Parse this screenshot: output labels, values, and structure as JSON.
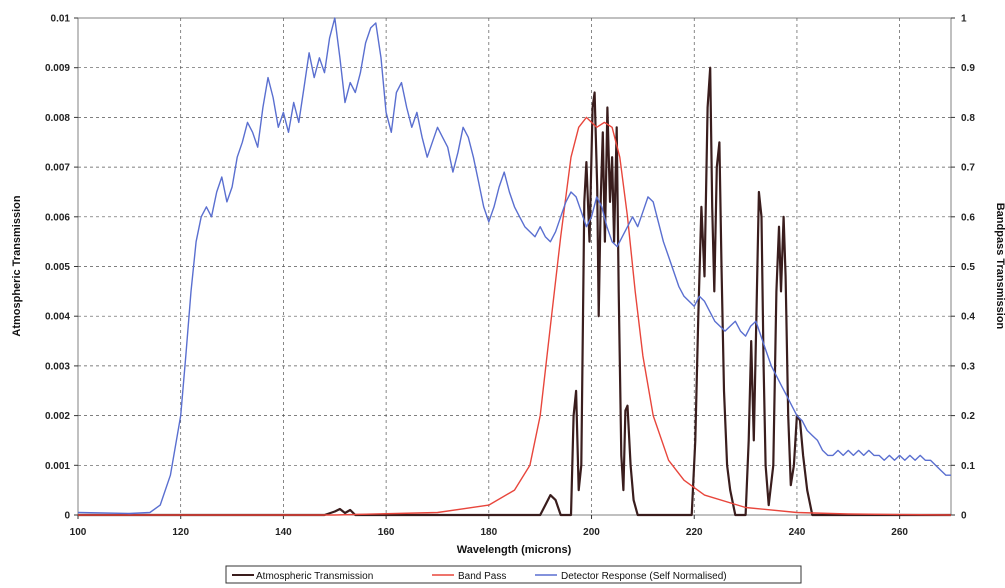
{
  "chart_data": {
    "type": "line",
    "title": "",
    "xlabel": "Wavelength (microns)",
    "ylabel_left": "Atmospheric Transmission",
    "ylabel_right": "Bandpass Transmission",
    "xlim": [
      100,
      270
    ],
    "ylim_left": [
      0,
      0.01
    ],
    "ylim_right": [
      0,
      1
    ],
    "x_ticks": [
      "100",
      "120",
      "140",
      "160",
      "180",
      "200",
      "220",
      "240",
      "260"
    ],
    "y_left_ticks": [
      "0",
      "0.001",
      "0.002",
      "0.003",
      "0.004",
      "0.005",
      "0.006",
      "0.007",
      "0.008",
      "0.009",
      "0.01"
    ],
    "y_right_ticks": [
      "0",
      "0.1",
      "0.2",
      "0.3",
      "0.4",
      "0.5",
      "0.6",
      "0.7",
      "0.8",
      "0.9",
      "1"
    ],
    "grid": true,
    "legend_position": "bottom",
    "series": [
      {
        "name": "Atmospheric Transmission",
        "color": "#3a1d1d",
        "axis": "left",
        "points": [
          [
            100,
            0
          ],
          [
            148,
            0
          ],
          [
            150,
            7e-05
          ],
          [
            151,
            0.00012
          ],
          [
            152,
            4e-05
          ],
          [
            153,
            0.0001
          ],
          [
            154,
            0
          ],
          [
            190,
            0
          ],
          [
            191,
            0.0002
          ],
          [
            192,
            0.0004
          ],
          [
            193,
            0.0003
          ],
          [
            194,
            0
          ],
          [
            196,
            0
          ],
          [
            196.5,
            0.002
          ],
          [
            197,
            0.0025
          ],
          [
            197.5,
            0.0005
          ],
          [
            198,
            0.001
          ],
          [
            198.6,
            0.0063
          ],
          [
            199,
            0.0071
          ],
          [
            199.6,
            0.0055
          ],
          [
            200.2,
            0.0082
          ],
          [
            200.6,
            0.0085
          ],
          [
            201.1,
            0.0066
          ],
          [
            201.4,
            0.004
          ],
          [
            201.8,
            0.0064
          ],
          [
            202.2,
            0.0077
          ],
          [
            202.6,
            0.0055
          ],
          [
            203.1,
            0.0082
          ],
          [
            203.6,
            0.0063
          ],
          [
            204,
            0.0072
          ],
          [
            204.4,
            0.0055
          ],
          [
            204.9,
            0.0078
          ],
          [
            205.3,
            0.0045
          ],
          [
            205.8,
            0.0012
          ],
          [
            206.2,
            0.0005
          ],
          [
            206.6,
            0.0021
          ],
          [
            207,
            0.0022
          ],
          [
            207.6,
            0.001
          ],
          [
            208.2,
            0.0003
          ],
          [
            209,
            0
          ],
          [
            219.5,
            0
          ],
          [
            220.2,
            0.0015
          ],
          [
            220.8,
            0.004
          ],
          [
            221.4,
            0.0062
          ],
          [
            222,
            0.0048
          ],
          [
            222.6,
            0.0082
          ],
          [
            223.1,
            0.009
          ],
          [
            223.5,
            0.0062
          ],
          [
            223.9,
            0.0045
          ],
          [
            224.4,
            0.007
          ],
          [
            224.9,
            0.0075
          ],
          [
            225.3,
            0.005
          ],
          [
            225.8,
            0.0025
          ],
          [
            226.4,
            0.001
          ],
          [
            227,
            0.0005
          ],
          [
            228,
            0
          ],
          [
            230,
            0
          ],
          [
            230.6,
            0.0015
          ],
          [
            231.1,
            0.0035
          ],
          [
            231.6,
            0.0015
          ],
          [
            232.1,
            0.004
          ],
          [
            232.6,
            0.0065
          ],
          [
            233.1,
            0.006
          ],
          [
            233.5,
            0.003
          ],
          [
            233.9,
            0.001
          ],
          [
            234.5,
            0.0002
          ],
          [
            235.4,
            0.001
          ],
          [
            236,
            0.0045
          ],
          [
            236.5,
            0.0058
          ],
          [
            236.9,
            0.0045
          ],
          [
            237.4,
            0.006
          ],
          [
            237.8,
            0.0048
          ],
          [
            238.3,
            0.002
          ],
          [
            238.8,
            0.0006
          ],
          [
            239.4,
            0.001
          ],
          [
            240,
            0.002
          ],
          [
            240.6,
            0.0019
          ],
          [
            241.2,
            0.0012
          ],
          [
            242,
            0.0005
          ],
          [
            243,
            0
          ],
          [
            270,
            0
          ]
        ]
      },
      {
        "name": "Band Pass",
        "color": "#e8463c",
        "axis": "right",
        "points": [
          [
            100,
            0
          ],
          [
            150,
            0
          ],
          [
            170,
            0.005
          ],
          [
            180,
            0.02
          ],
          [
            185,
            0.05
          ],
          [
            188,
            0.1
          ],
          [
            190,
            0.2
          ],
          [
            192,
            0.38
          ],
          [
            194,
            0.56
          ],
          [
            196,
            0.72
          ],
          [
            197.5,
            0.78
          ],
          [
            199,
            0.8
          ],
          [
            201,
            0.78
          ],
          [
            202.5,
            0.79
          ],
          [
            204,
            0.78
          ],
          [
            205.5,
            0.72
          ],
          [
            207,
            0.6
          ],
          [
            208.5,
            0.45
          ],
          [
            210,
            0.32
          ],
          [
            212,
            0.2
          ],
          [
            215,
            0.11
          ],
          [
            218,
            0.07
          ],
          [
            222,
            0.04
          ],
          [
            230,
            0.015
          ],
          [
            240,
            0.005
          ],
          [
            250,
            0.002
          ],
          [
            270,
            0
          ]
        ]
      },
      {
        "name": "Detector Response (Self Normalised)",
        "color": "#5a6fd0",
        "axis": "left",
        "points": [
          [
            100,
            5e-05
          ],
          [
            110,
            3e-05
          ],
          [
            114,
            5e-05
          ],
          [
            116,
            0.0002
          ],
          [
            118,
            0.0008
          ],
          [
            120,
            0.002
          ],
          [
            121,
            0.0032
          ],
          [
            122,
            0.0045
          ],
          [
            123,
            0.0055
          ],
          [
            124,
            0.006
          ],
          [
            125,
            0.0062
          ],
          [
            126,
            0.006
          ],
          [
            127,
            0.0065
          ],
          [
            128,
            0.0068
          ],
          [
            129,
            0.0063
          ],
          [
            130,
            0.0066
          ],
          [
            131,
            0.0072
          ],
          [
            132,
            0.0075
          ],
          [
            133,
            0.0079
          ],
          [
            134,
            0.0077
          ],
          [
            135,
            0.0074
          ],
          [
            136,
            0.0082
          ],
          [
            137,
            0.0088
          ],
          [
            138,
            0.0084
          ],
          [
            139,
            0.0078
          ],
          [
            140,
            0.0081
          ],
          [
            141,
            0.0077
          ],
          [
            142,
            0.0083
          ],
          [
            143,
            0.0079
          ],
          [
            144,
            0.0086
          ],
          [
            145,
            0.0093
          ],
          [
            146,
            0.0088
          ],
          [
            147,
            0.0092
          ],
          [
            148,
            0.0089
          ],
          [
            149,
            0.0096
          ],
          [
            150,
            0.01
          ],
          [
            151,
            0.0092
          ],
          [
            152,
            0.0083
          ],
          [
            153,
            0.0087
          ],
          [
            154,
            0.0085
          ],
          [
            155,
            0.0089
          ],
          [
            156,
            0.0095
          ],
          [
            157,
            0.0098
          ],
          [
            158,
            0.0099
          ],
          [
            159,
            0.0092
          ],
          [
            160,
            0.0081
          ],
          [
            161,
            0.0077
          ],
          [
            162,
            0.0085
          ],
          [
            163,
            0.0087
          ],
          [
            164,
            0.0082
          ],
          [
            165,
            0.0078
          ],
          [
            166,
            0.0081
          ],
          [
            167,
            0.0076
          ],
          [
            168,
            0.0072
          ],
          [
            169,
            0.0075
          ],
          [
            170,
            0.0078
          ],
          [
            171,
            0.0076
          ],
          [
            172,
            0.0074
          ],
          [
            173,
            0.0069
          ],
          [
            174,
            0.0073
          ],
          [
            175,
            0.0078
          ],
          [
            176,
            0.0076
          ],
          [
            177,
            0.0072
          ],
          [
            178,
            0.0067
          ],
          [
            179,
            0.0062
          ],
          [
            180,
            0.0059
          ],
          [
            181,
            0.0062
          ],
          [
            182,
            0.0066
          ],
          [
            183,
            0.0069
          ],
          [
            184,
            0.0065
          ],
          [
            185,
            0.0062
          ],
          [
            186,
            0.006
          ],
          [
            187,
            0.0058
          ],
          [
            188,
            0.0057
          ],
          [
            189,
            0.0056
          ],
          [
            190,
            0.0058
          ],
          [
            191,
            0.0056
          ],
          [
            192,
            0.0055
          ],
          [
            193,
            0.0057
          ],
          [
            194,
            0.006
          ],
          [
            195,
            0.0063
          ],
          [
            196,
            0.0065
          ],
          [
            197,
            0.0064
          ],
          [
            198,
            0.0061
          ],
          [
            199,
            0.0058
          ],
          [
            200,
            0.006
          ],
          [
            201,
            0.0064
          ],
          [
            202,
            0.0062
          ],
          [
            203,
            0.0058
          ],
          [
            204,
            0.0055
          ],
          [
            205,
            0.0054
          ],
          [
            206,
            0.0056
          ],
          [
            207,
            0.0058
          ],
          [
            208,
            0.006
          ],
          [
            209,
            0.0058
          ],
          [
            210,
            0.0061
          ],
          [
            211,
            0.0064
          ],
          [
            212,
            0.0063
          ],
          [
            213,
            0.0059
          ],
          [
            214,
            0.0055
          ],
          [
            215,
            0.0052
          ],
          [
            216,
            0.0049
          ],
          [
            217,
            0.0046
          ],
          [
            218,
            0.0044
          ],
          [
            219,
            0.0043
          ],
          [
            220,
            0.0042
          ],
          [
            221,
            0.0044
          ],
          [
            222,
            0.0043
          ],
          [
            223,
            0.0041
          ],
          [
            224,
            0.0039
          ],
          [
            225,
            0.0038
          ],
          [
            226,
            0.0037
          ],
          [
            227,
            0.0038
          ],
          [
            228,
            0.0039
          ],
          [
            229,
            0.0037
          ],
          [
            230,
            0.0036
          ],
          [
            231,
            0.0038
          ],
          [
            232,
            0.0039
          ],
          [
            233,
            0.0036
          ],
          [
            234,
            0.0033
          ],
          [
            235,
            0.003
          ],
          [
            236,
            0.0028
          ],
          [
            237,
            0.0026
          ],
          [
            238,
            0.0024
          ],
          [
            239,
            0.0022
          ],
          [
            240,
            0.002
          ],
          [
            241,
            0.0019
          ],
          [
            242,
            0.0017
          ],
          [
            243,
            0.0016
          ],
          [
            244,
            0.0015
          ],
          [
            245,
            0.0013
          ],
          [
            246,
            0.0012
          ],
          [
            247,
            0.0012
          ],
          [
            248,
            0.0013
          ],
          [
            249,
            0.0012
          ],
          [
            250,
            0.0013
          ],
          [
            251,
            0.0012
          ],
          [
            252,
            0.0013
          ],
          [
            253,
            0.0012
          ],
          [
            254,
            0.0013
          ],
          [
            255,
            0.0012
          ],
          [
            256,
            0.0012
          ],
          [
            257,
            0.0011
          ],
          [
            258,
            0.0012
          ],
          [
            259,
            0.0011
          ],
          [
            260,
            0.0012
          ],
          [
            261,
            0.0011
          ],
          [
            262,
            0.0012
          ],
          [
            263,
            0.0011
          ],
          [
            264,
            0.0012
          ],
          [
            265,
            0.0011
          ],
          [
            266,
            0.0011
          ],
          [
            267,
            0.001
          ],
          [
            268,
            0.0009
          ],
          [
            269,
            0.0008
          ],
          [
            270,
            0.0008
          ]
        ]
      }
    ]
  }
}
